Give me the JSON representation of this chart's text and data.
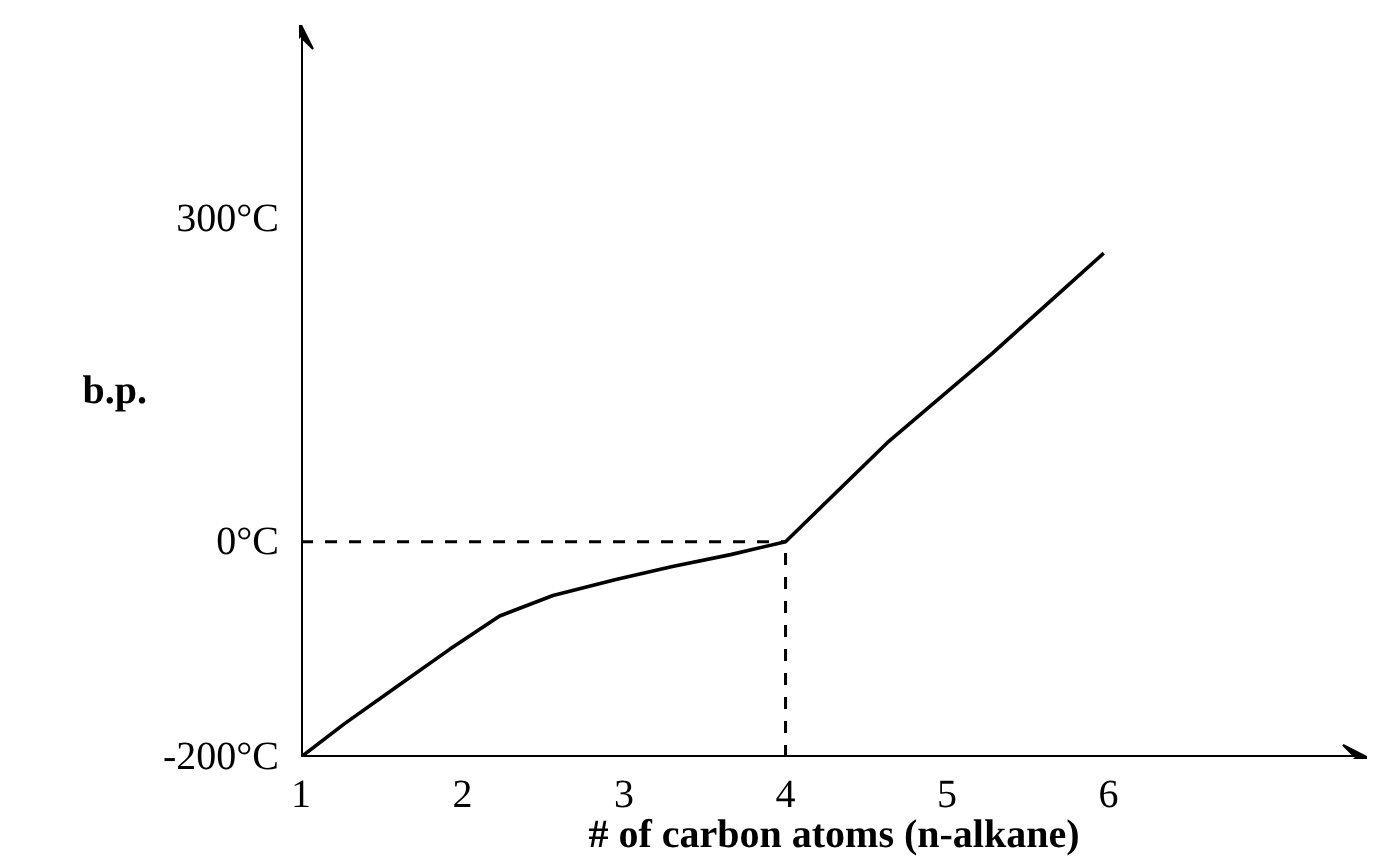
{
  "chart_data": {
    "type": "line",
    "xlabel": "# of carbon atoms (n-alkane)",
    "ylabel": "b.p.",
    "x": [
      1,
      1.27,
      1.59,
      1.92,
      2.23,
      2.56,
      2.95,
      3.3,
      3.66,
      4,
      4.63,
      5.28,
      5.97
    ],
    "series": [
      {
        "color": "#000000",
        "values": [
          -200,
          -169,
          -135,
          -100,
          -69,
          -50,
          -35,
          -23,
          -12,
          0,
          92,
          175,
          268
        ]
      }
    ],
    "xlim": [
      1,
      7.6
    ],
    "ylim": [
      -200,
      480
    ],
    "xticks": [
      1,
      2,
      3,
      4,
      5,
      6
    ],
    "yticks": [
      {
        "value": -200,
        "label": "-200°C"
      },
      {
        "value": 0,
        "label": "0°C"
      },
      {
        "value": 300,
        "label": "300°C"
      }
    ],
    "ref_lines": [
      {
        "axis": "y",
        "value": 0,
        "line_style": "dashed"
      },
      {
        "axis": "x",
        "value": 4,
        "line_style": "dashed"
      }
    ],
    "grid": false,
    "marker": "none",
    "line_style": "solid"
  }
}
